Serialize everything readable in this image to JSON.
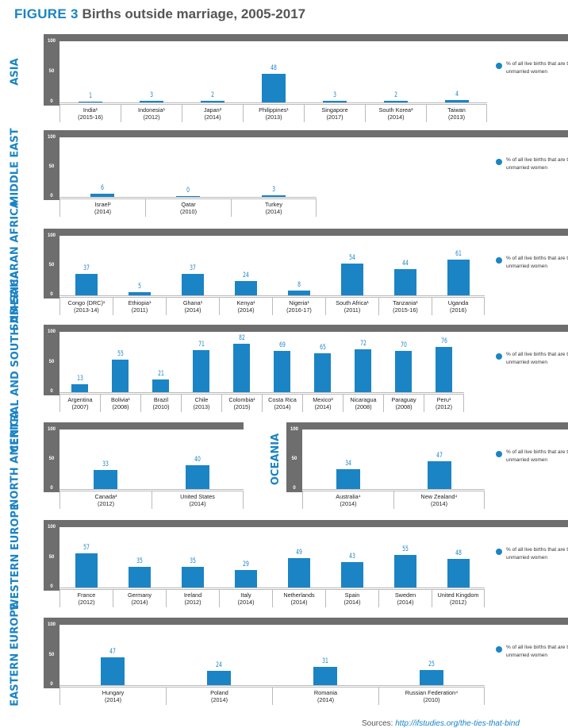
{
  "header": {
    "figure_label": "FIGURE 3",
    "title": "Births outside marriage, 2005-2017"
  },
  "legend_text": "% of all live births that are to unmarried women",
  "axis_ticks": [
    "100",
    "50",
    "0"
  ],
  "source": {
    "prefix": "Sources: ",
    "link": "http://ifstudies.org/the-ties-that-bind"
  },
  "colors": {
    "bar": "#1b84c4",
    "frame": "#6e6e6e",
    "title_blue": "#1b84c4"
  },
  "chart_data": [
    {
      "type": "bar",
      "region": "ASIA",
      "ylim": [
        0,
        100
      ],
      "categories": [
        "India¹ (2015-16)",
        "Indonesia¹ (2012)",
        "Japan² (2014)",
        "Philippines¹ (2013)",
        "Singapore (2017)",
        "South Korea² (2014)",
        "Taiwan (2013)"
      ],
      "names": [
        "India¹",
        "Indonesia¹",
        "Japan²",
        "Philippines¹",
        "Singapore",
        "South Korea²",
        "Taiwan"
      ],
      "years": [
        "(2015-16)",
        "(2012)",
        "(2014)",
        "(2013)",
        "(2017)",
        "(2014)",
        "(2013)"
      ],
      "values": [
        1,
        3,
        2,
        48,
        3,
        2,
        4
      ]
    },
    {
      "type": "bar",
      "region": "MIDDLE EAST",
      "ylim": [
        0,
        100
      ],
      "categories": [
        "Israel² (2014)",
        "Qatar (2010)",
        "Turkey (2014)"
      ],
      "names": [
        "Israel²",
        "Qatar",
        "Turkey"
      ],
      "years": [
        "(2014)",
        "(2010)",
        "(2014)"
      ],
      "values": [
        6,
        0,
        3
      ]
    },
    {
      "type": "bar",
      "region": "SUB-SAHARAN AFRICA",
      "ylim": [
        0,
        100
      ],
      "categories": [
        "Congo (DRC)¹ (2013-14)",
        "Ethiopia¹ (2011)",
        "Ghana¹ (2014)",
        "Kenya¹ (2014)",
        "Nigeria¹ (2016-17)",
        "South Africa¹ (2011)",
        "Tanzania¹ (2015-16)",
        "Uganda (2016)"
      ],
      "names": [
        "Congo (DRC)¹",
        "Ethiopia¹",
        "Ghana¹",
        "Kenya¹",
        "Nigeria¹",
        "South Africa¹",
        "Tanzania¹",
        "Uganda"
      ],
      "years": [
        "(2013-14)",
        "(2011)",
        "(2014)",
        "(2014)",
        "(2016-17)",
        "(2011)",
        "(2015-16)",
        "(2016)"
      ],
      "values": [
        37,
        5,
        37,
        24,
        8,
        54,
        44,
        61
      ]
    },
    {
      "type": "bar",
      "region": "CENTRAL AND SOUTH AMERICA",
      "ylim": [
        0,
        100
      ],
      "categories": [
        "Argentina (2007)",
        "Bolivia¹ (2008)",
        "Brazil (2010)",
        "Chile (2013)",
        "Colombia¹ (2015)",
        "Costa Rica (2014)",
        "Mexico² (2014)",
        "Nicaragua (2008)",
        "Paraguay (2008)",
        "Peru¹ (2012)"
      ],
      "names": [
        "Argentina",
        "Bolivia¹",
        "Brazil",
        "Chile",
        "Colombia¹",
        "Costa Rica",
        "Mexico²",
        "Nicaragua",
        "Paraguay",
        "Peru¹"
      ],
      "years": [
        "(2007)",
        "(2008)",
        "(2010)",
        "(2013)",
        "(2015)",
        "(2014)",
        "(2014)",
        "(2008)",
        "(2008)",
        "(2012)"
      ],
      "values": [
        13,
        55,
        21,
        71,
        82,
        69,
        65,
        72,
        70,
        76
      ]
    },
    {
      "type": "bar",
      "region": "NORTH AMERICA",
      "ylim": [
        0,
        100
      ],
      "categories": [
        "Canada³ (2012)",
        "United States (2014)"
      ],
      "names": [
        "Canada³",
        "United States"
      ],
      "years": [
        "(2012)",
        "(2014)"
      ],
      "values": [
        33,
        40
      ]
    },
    {
      "type": "bar",
      "region": "OCEANIA",
      "ylim": [
        0,
        100
      ],
      "categories": [
        "Australia⁴ (2014)",
        "New Zealand⁴ (2014)"
      ],
      "names": [
        "Australia⁴",
        "New Zealand⁴"
      ],
      "years": [
        "(2014)",
        "(2014)"
      ],
      "values": [
        34,
        47
      ]
    },
    {
      "type": "bar",
      "region": "WESTERN EUROPE",
      "ylim": [
        0,
        100
      ],
      "categories": [
        "France (2012)",
        "Germany (2014)",
        "Ireland (2012)",
        "Italy (2014)",
        "Netherlands (2014)",
        "Spain (2014)",
        "Sweden (2014)",
        "United Kingdom (2012)"
      ],
      "names": [
        "France",
        "Germany",
        "Ireland",
        "Italy",
        "Netherlands",
        "Spain",
        "Sweden",
        "United Kingdom"
      ],
      "years": [
        "(2012)",
        "(2014)",
        "(2012)",
        "(2014)",
        "(2014)",
        "(2014)",
        "(2014)",
        "(2012)"
      ],
      "values": [
        57,
        35,
        35,
        29,
        49,
        43,
        55,
        48
      ]
    },
    {
      "type": "bar",
      "region": "EASTERN EUROPE",
      "ylim": [
        0,
        100
      ],
      "categories": [
        "Hungary (2014)",
        "Poland (2014)",
        "Romania (2014)",
        "Russian Federation⁴ (2010)"
      ],
      "names": [
        "Hungary",
        "Poland",
        "Romania",
        "Russian Federation⁴"
      ],
      "years": [
        "(2014)",
        "(2014)",
        "(2014)",
        "(2010)"
      ],
      "values": [
        47,
        24,
        31,
        25
      ]
    }
  ]
}
